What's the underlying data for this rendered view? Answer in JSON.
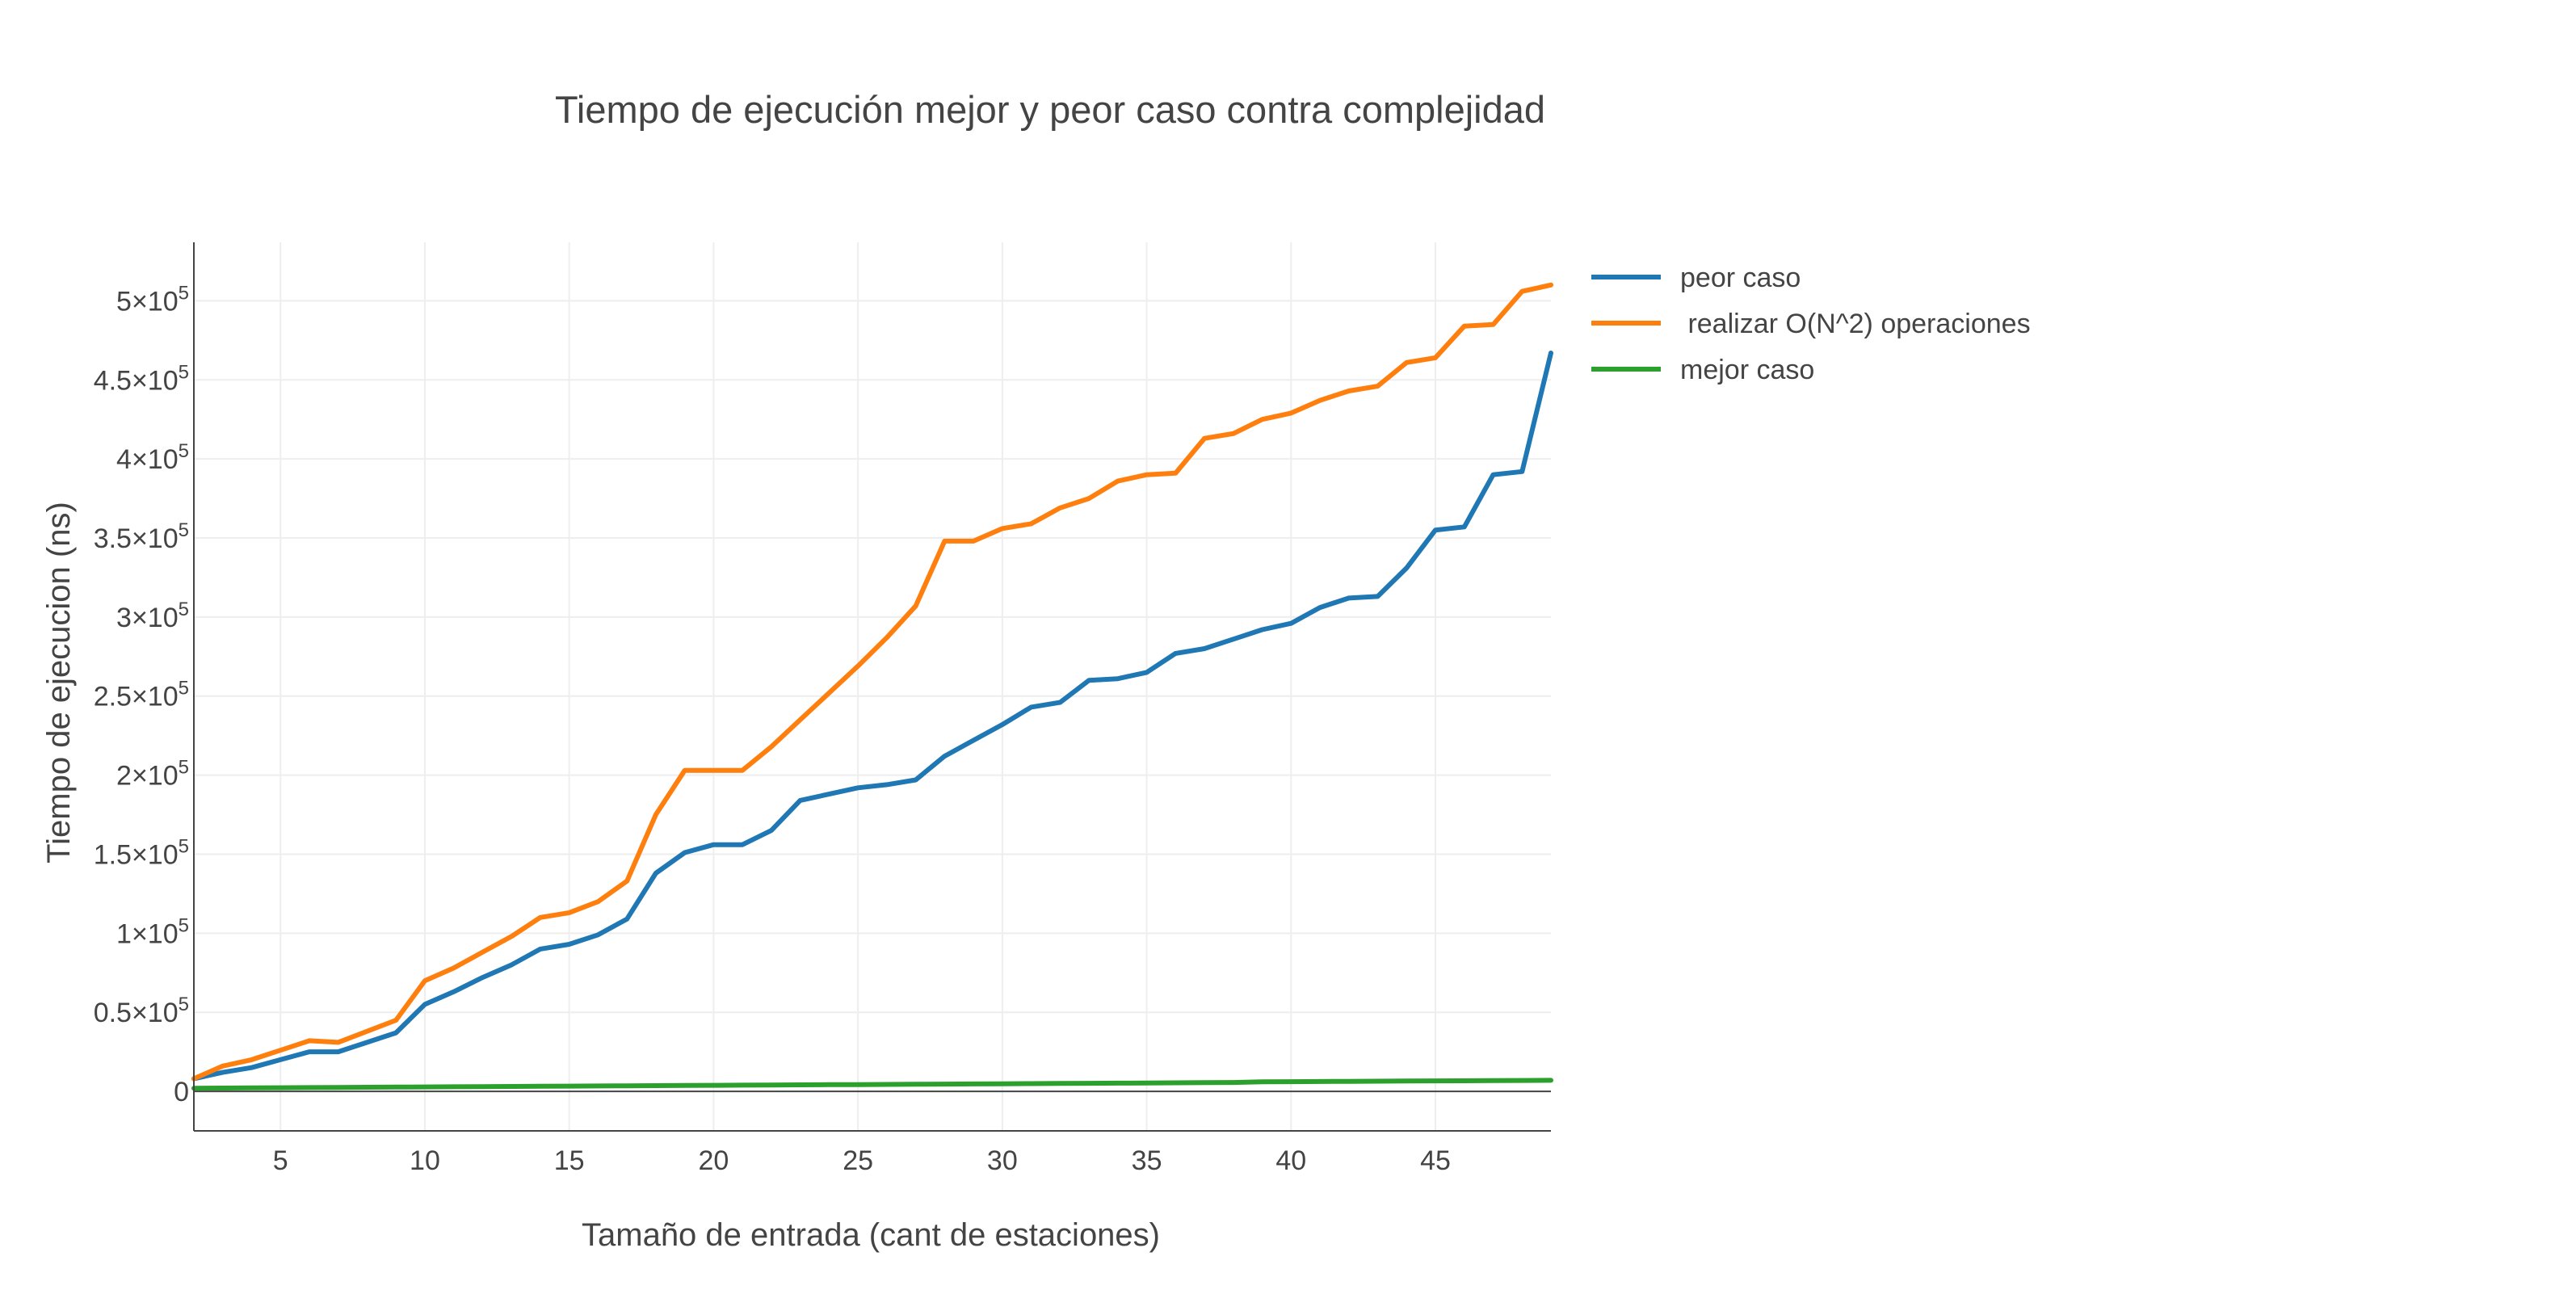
{
  "chart_data": {
    "type": "line",
    "title": "Tiempo de ejecución mejor y peor caso contra complejidad",
    "xlabel": "Tamaño de entrada (cant de estaciones)",
    "ylabel": "Tiempo de ejecucion (ns)",
    "xlim": [
      2,
      49
    ],
    "ylim": [
      -25000,
      537000
    ],
    "grid": true,
    "legend_position": "top-right outside plot",
    "x_ticks": [
      5,
      10,
      15,
      20,
      25,
      30,
      35,
      40,
      45
    ],
    "y_ticks": [
      {
        "value": 0,
        "label": "0",
        "exp": ""
      },
      {
        "value": 50000,
        "label": "0.5×10",
        "exp": "5"
      },
      {
        "value": 100000,
        "label": "1×10",
        "exp": "5"
      },
      {
        "value": 150000,
        "label": "1.5×10",
        "exp": "5"
      },
      {
        "value": 200000,
        "label": "2×10",
        "exp": "5"
      },
      {
        "value": 250000,
        "label": "2.5×10",
        "exp": "5"
      },
      {
        "value": 300000,
        "label": "3×10",
        "exp": "5"
      },
      {
        "value": 350000,
        "label": "3.5×10",
        "exp": "5"
      },
      {
        "value": 400000,
        "label": "4×10",
        "exp": "5"
      },
      {
        "value": 450000,
        "label": "4.5×10",
        "exp": "5"
      },
      {
        "value": 500000,
        "label": "5×10",
        "exp": "5"
      }
    ],
    "x": [
      2,
      3,
      4,
      5,
      6,
      7,
      8,
      9,
      10,
      11,
      12,
      13,
      14,
      15,
      16,
      17,
      18,
      19,
      20,
      21,
      22,
      23,
      24,
      25,
      26,
      27,
      28,
      29,
      30,
      31,
      32,
      33,
      34,
      35,
      36,
      37,
      38,
      39,
      40,
      41,
      42,
      43,
      44,
      45,
      46,
      47,
      48,
      49
    ],
    "series": [
      {
        "name": "peor caso",
        "color": "#1f77b4",
        "values": [
          8000,
          12000,
          15000,
          20000,
          25000,
          25000,
          31000,
          37000,
          55000,
          63000,
          72000,
          80000,
          90000,
          93000,
          99000,
          109000,
          138000,
          151000,
          156000,
          156000,
          165000,
          184000,
          188000,
          192000,
          194000,
          197000,
          212000,
          222000,
          232000,
          243000,
          246000,
          260000,
          261000,
          265000,
          277000,
          280000,
          286000,
          292000,
          296000,
          306000,
          312000,
          313000,
          331000,
          355000,
          357000,
          390000,
          392000,
          467000
        ]
      },
      {
        "name": " realizar O(N^2) operaciones",
        "color": "#ff7f0e",
        "values": [
          8000,
          16000,
          20000,
          26000,
          32000,
          31000,
          38000,
          45000,
          70000,
          78000,
          88000,
          98000,
          110000,
          113000,
          120000,
          133000,
          175000,
          203000,
          203000,
          203000,
          218000,
          235000,
          252000,
          269000,
          287000,
          307000,
          348000,
          348000,
          356000,
          359000,
          369000,
          375000,
          386000,
          390000,
          391000,
          413000,
          416000,
          425000,
          429000,
          437000,
          443000,
          446000,
          461000,
          464000,
          484000,
          485000,
          506000,
          510000
        ]
      },
      {
        "name": "mejor caso",
        "color": "#2ca02c",
        "values": [
          2000,
          2100,
          2200,
          2300,
          2400,
          2500,
          2600,
          2700,
          2800,
          2900,
          3000,
          3100,
          3200,
          3300,
          3400,
          3500,
          3600,
          3700,
          3800,
          3900,
          4000,
          4100,
          4200,
          4300,
          4400,
          4500,
          4600,
          4700,
          4800,
          4900,
          5000,
          5100,
          5200,
          5300,
          5400,
          5500,
          5600,
          6000,
          6100,
          6200,
          6300,
          6400,
          6500,
          6600,
          6700,
          6800,
          6900,
          7000
        ]
      }
    ]
  }
}
